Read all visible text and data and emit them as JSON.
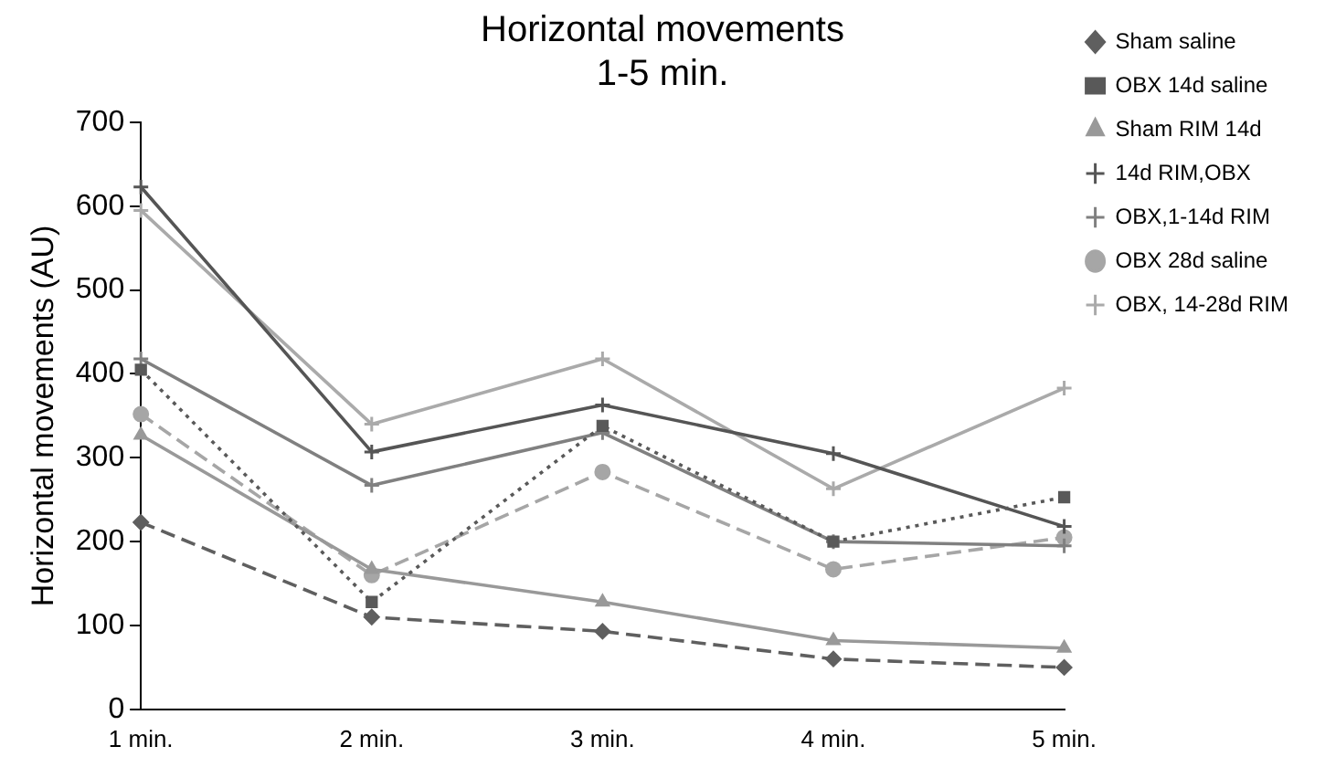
{
  "chart_data": {
    "type": "line",
    "title": [
      "Horizontal movements",
      "1-5 min."
    ],
    "ylabel": "Horizontal movements (AU)",
    "categories": [
      "1 min.",
      "2 min.",
      "3 min.",
      "4 min.",
      "5 min."
    ],
    "ylim": [
      0,
      700
    ],
    "yticks": [
      0,
      100,
      200,
      300,
      400,
      500,
      600,
      700
    ],
    "grid": false,
    "legend": "right",
    "series": [
      {
        "name": "Sham saline",
        "color": "#5f5f5f",
        "marker": "diamond",
        "line_style": "dashed",
        "values": [
          223,
          110,
          93,
          60,
          50
        ]
      },
      {
        "name": "OBX 14d saline",
        "color": "#595959",
        "marker": "square",
        "line_style": "dotted",
        "values": [
          405,
          128,
          338,
          200,
          253
        ]
      },
      {
        "name": "Sham RIM 14d",
        "color": "#999999",
        "marker": "triangle",
        "line_style": "solid",
        "values": [
          327,
          167,
          128,
          82,
          73
        ]
      },
      {
        "name": "14d RIM,OBX",
        "color": "#555555",
        "marker": "cross",
        "line_style": "solid",
        "values": [
          623,
          307,
          363,
          305,
          218
        ]
      },
      {
        "name": "OBX,1-14d RIM",
        "color": "#808080",
        "marker": "cross",
        "line_style": "solid",
        "values": [
          418,
          267,
          330,
          200,
          195
        ]
      },
      {
        "name": "OBX 28d saline",
        "color": "#a6a6a6",
        "marker": "circle",
        "line_style": "dashed",
        "values": [
          352,
          160,
          283,
          167,
          205
        ]
      },
      {
        "name": "OBX, 14-28d RIM",
        "color": "#aaaaaa",
        "marker": "cross",
        "line_style": "solid",
        "values": [
          595,
          340,
          418,
          263,
          383
        ]
      }
    ]
  }
}
